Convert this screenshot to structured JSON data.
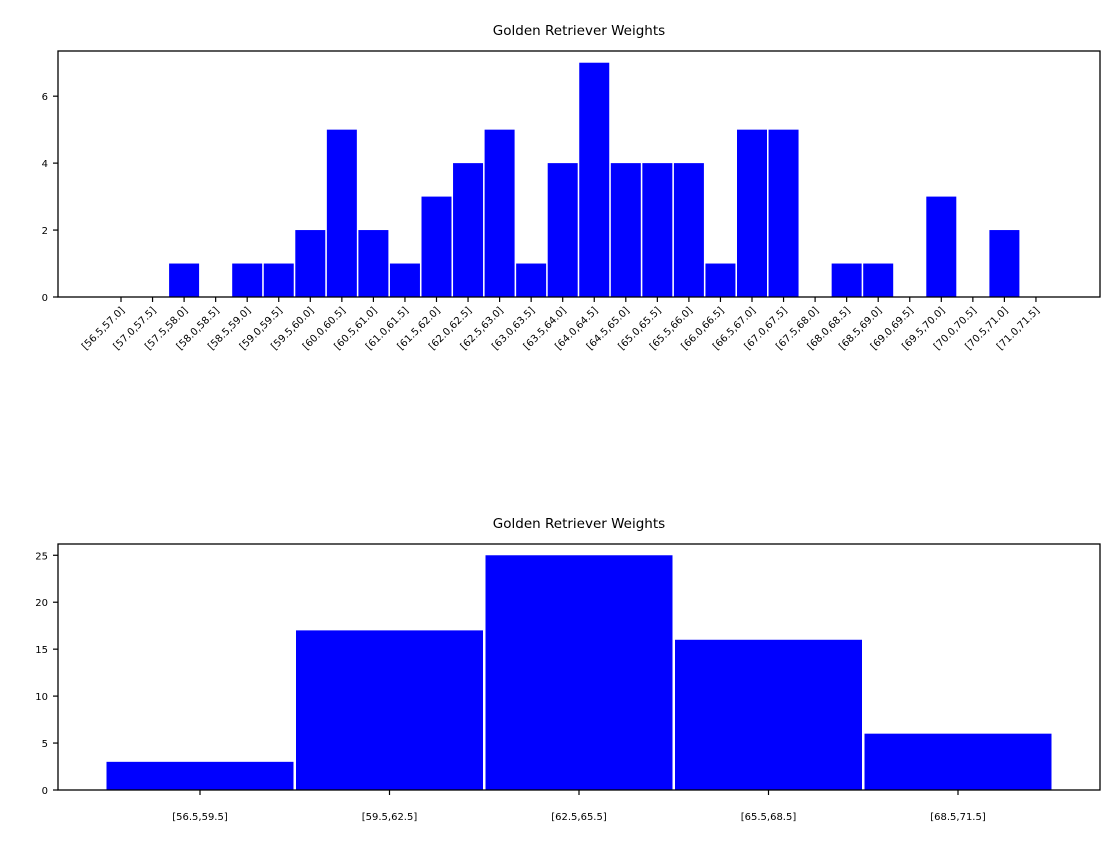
{
  "chart_data": [
    {
      "type": "bar",
      "title": "Golden Retriever Weights",
      "xlabel": "",
      "ylabel": "",
      "categories": [
        "[56.5,57.0]",
        "[57.0,57.5]",
        "[57.5,58.0]",
        "[58.0,58.5]",
        "[58.5,59.0]",
        "[59.0,59.5]",
        "[59.5,60.0]",
        "[60.0,60.5]",
        "[60.5,61.0]",
        "[61.0,61.5]",
        "[61.5,62.0]",
        "[62.0,62.5]",
        "[62.5,63.0]",
        "[63.0,63.5]",
        "[63.5,64.0]",
        "[64.0,64.5]",
        "[64.5,65.0]",
        "[65.0,65.5]",
        "[65.5,66.0]",
        "[66.0,66.5]",
        "[66.5,67.0]",
        "[67.0,67.5]",
        "[67.5,68.0]",
        "[68.0,68.5]",
        "[68.5,69.0]",
        "[69.0,69.5]",
        "[69.5,70.0]",
        "[70.0,70.5]",
        "[70.5,71.0]",
        "[71.0,71.5]"
      ],
      "values": [
        0,
        0,
        1,
        0,
        1,
        1,
        2,
        5,
        2,
        1,
        3,
        4,
        5,
        1,
        4,
        7,
        4,
        4,
        4,
        1,
        5,
        5,
        0,
        1,
        1,
        0,
        3,
        0,
        2,
        0
      ],
      "ylim": [
        0,
        7.35
      ],
      "yticks": [
        0,
        2,
        4,
        6
      ],
      "color": "#0000ff",
      "grid": false
    },
    {
      "type": "bar",
      "title": "Golden Retriever Weights",
      "xlabel": "",
      "ylabel": "",
      "categories": [
        "[56.5,59.5]",
        "[59.5,62.5]",
        "[62.5,65.5]",
        "[65.5,68.5]",
        "[68.5,71.5]"
      ],
      "values": [
        3,
        17,
        25,
        16,
        6
      ],
      "ylim": [
        0,
        26.2
      ],
      "yticks": [
        0,
        5,
        10,
        15,
        20,
        25
      ],
      "color": "#0000ff",
      "grid": false
    }
  ]
}
